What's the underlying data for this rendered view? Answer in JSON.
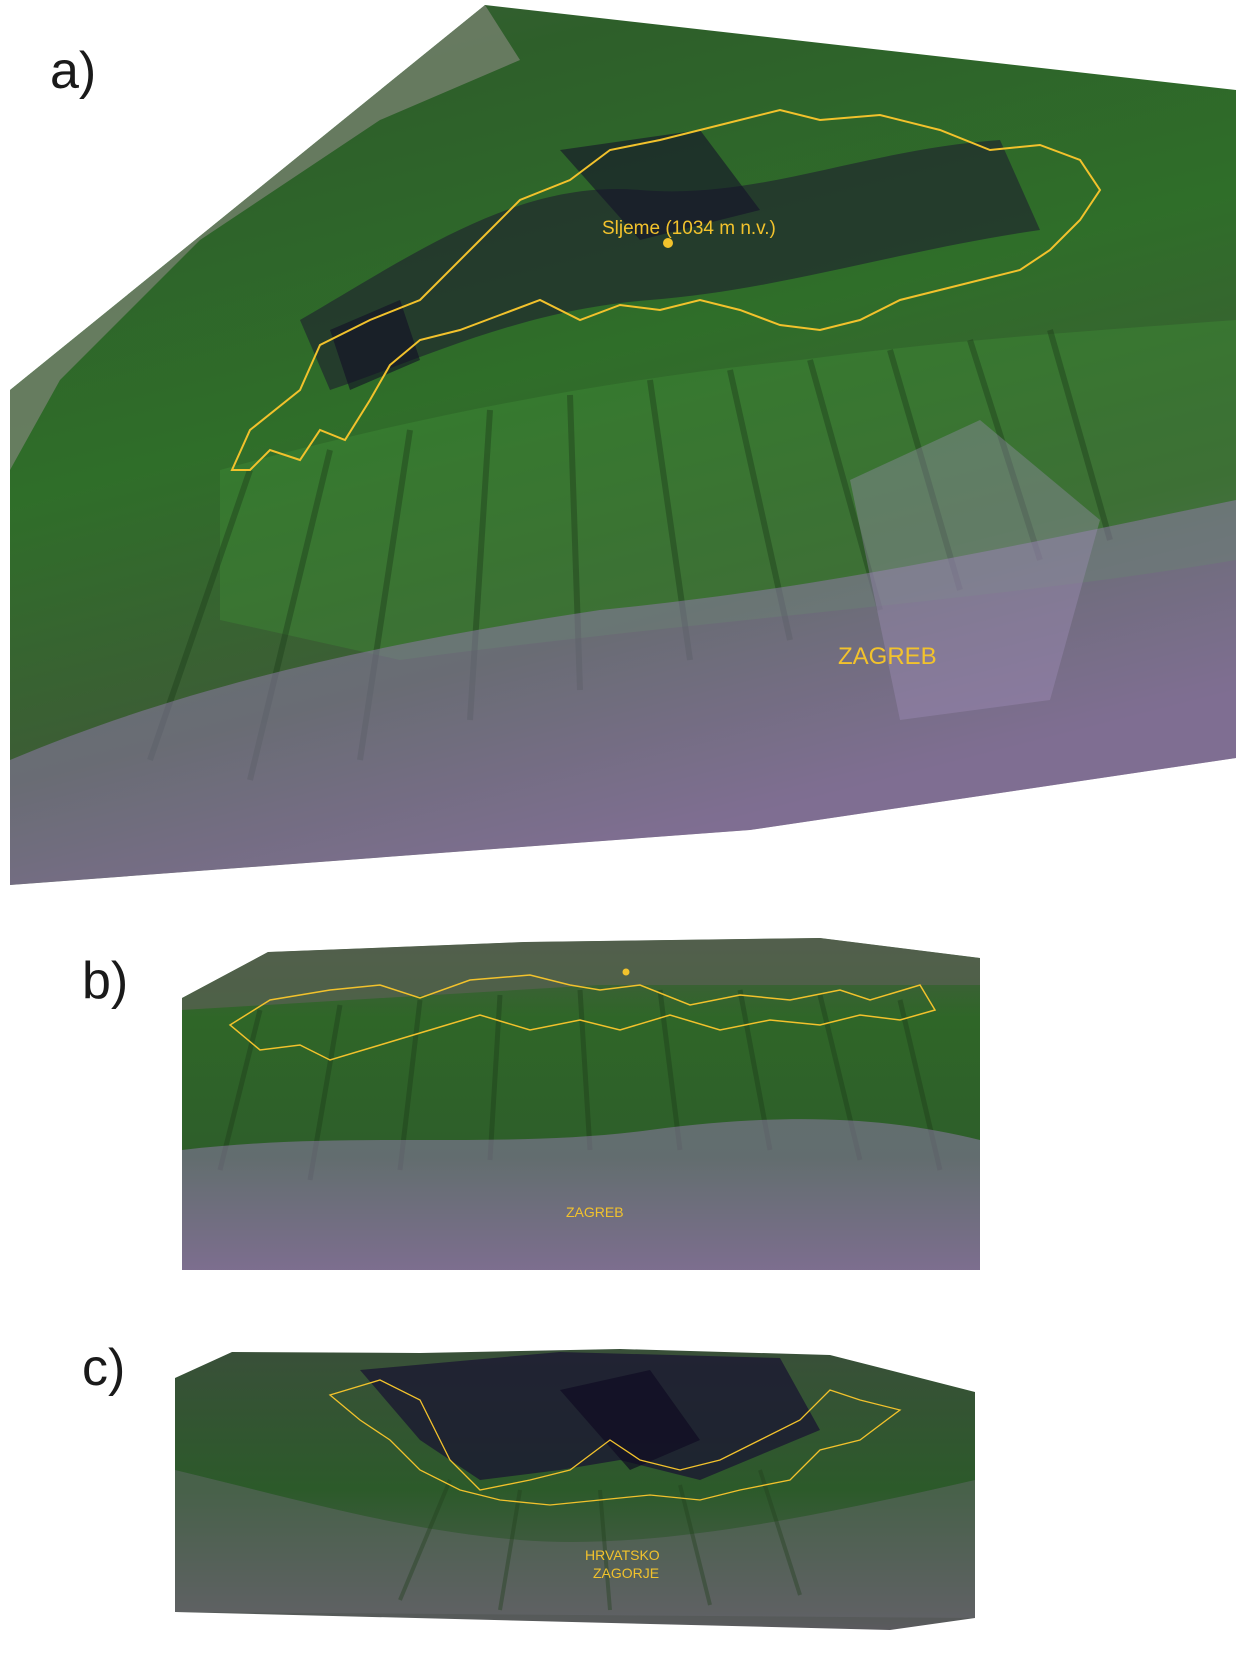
{
  "panels": [
    {
      "label": "a)",
      "annotations": {
        "peak": "Sljeme (1034 m n.v.)",
        "city": "ZAGREB"
      }
    },
    {
      "label": "b)",
      "annotations": {
        "city": "ZAGREB"
      }
    },
    {
      "label": "c)",
      "annotations": {
        "region_line1": "HRVATSKO",
        "region_line2": "ZAGORJE"
      }
    }
  ],
  "colors": {
    "background": "#ffffff",
    "forest_dark": "#1f3d1c",
    "forest": "#2f6a2a",
    "forest_light": "#4f9a3f",
    "shadow": "#1b1530",
    "urban": "#9a87b4",
    "boundary": "#f2c22c",
    "label_text": "#1a1a1a"
  }
}
